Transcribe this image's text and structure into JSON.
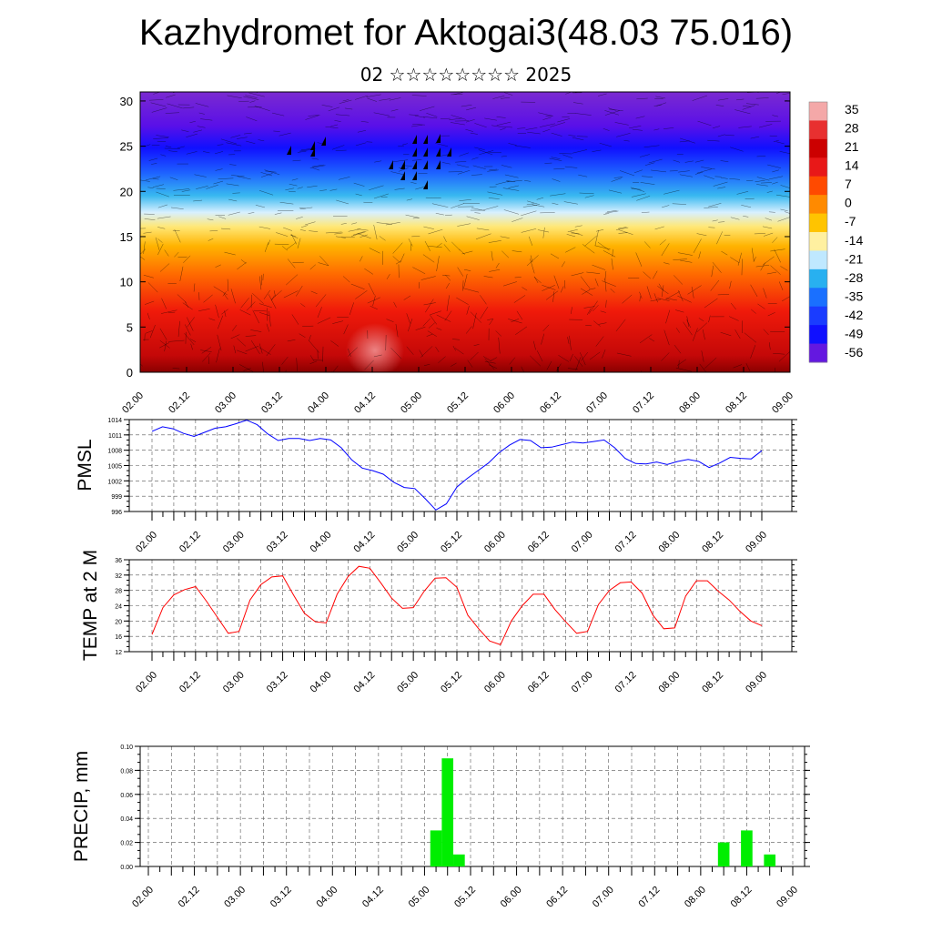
{
  "title": "Kazhydromet for Aktogai3(48.03 75.016)",
  "subtitle": "02 ☆☆☆☆☆☆☆☆ 2025",
  "colors": {
    "pmsl_line": "#0000ff",
    "temp_line": "#ff0000",
    "precip_bar": "#00ee00"
  },
  "chart_data": [
    {
      "type": "heatmap",
      "title": "",
      "xlabel": "",
      "ylabel": "",
      "x_ticks": [
        "02.00",
        "02.12",
        "03.00",
        "03.12",
        "04.00",
        "04.12",
        "05.00",
        "05.12",
        "06.00",
        "06.12",
        "07.00",
        "07.12",
        "08.00",
        "08.12",
        "09.00"
      ],
      "y_ticks": [
        "0",
        "5",
        "10",
        "15",
        "20",
        "25",
        "30"
      ],
      "ylim": [
        0,
        31
      ],
      "colorbar_labels": [
        "35",
        "28",
        "21",
        "14",
        "7",
        "0",
        "-7",
        "-14",
        "-21",
        "-28",
        "-35",
        "-42",
        "-49",
        "-56"
      ],
      "overlay": "wind streamlines and barbs"
    },
    {
      "type": "line",
      "ylabel": "PMSL",
      "ylim": [
        996,
        1014
      ],
      "y_ticks": [
        "1014",
        "1011",
        "1008",
        "1005",
        "1002",
        "999",
        "996"
      ],
      "x_ticks": [
        "02.00",
        "02.12",
        "03.00",
        "03.12",
        "04.00",
        "04.12",
        "05.00",
        "05.12",
        "06.00",
        "06.12",
        "07.00",
        "07.12",
        "08.00",
        "08.12",
        "09.00"
      ],
      "grid": true,
      "series": [
        {
          "values": [
            1011.7,
            1012.6,
            1012.2,
            1011.3,
            1010.7,
            1011.5,
            1012.3,
            1012.6,
            1013.2,
            1013.9,
            1013.0,
            1011.2,
            1009.9,
            1010.3,
            1010.3,
            1009.9,
            1010.3,
            1010.0,
            1008.5,
            1006.1,
            1004.5,
            1004.0,
            1003.3,
            1001.7,
            1000.7,
            1000.5,
            998.5,
            996.3,
            997.5,
            1000.8,
            1002.5,
            1004.0,
            1005.5,
            1007.5,
            1009.0,
            1010.1,
            1009.9,
            1008.5,
            1008.6,
            1009.1,
            1009.6,
            1009.4,
            1009.7,
            1010.0,
            1008.5,
            1006.4,
            1005.4,
            1005.3,
            1005.7,
            1005.2,
            1005.8,
            1006.2,
            1005.8,
            1004.6,
            1005.5,
            1006.6,
            1006.4,
            1006.3,
            1007.9
          ]
        }
      ]
    },
    {
      "type": "line",
      "ylabel": "TEMP at 2 M",
      "ylim": [
        12,
        36
      ],
      "y_ticks": [
        "36",
        "32",
        "28",
        "24",
        "20",
        "16",
        "12"
      ],
      "x_ticks": [
        "02.00",
        "02.12",
        "03.00",
        "03.12",
        "04.00",
        "04.12",
        "05.00",
        "05.12",
        "06.00",
        "06.12",
        "07.00",
        "07.12",
        "08.00",
        "08.12",
        "09.00"
      ],
      "grid": true,
      "series": [
        {
          "values": [
            16.5,
            23.5,
            26.8,
            28.2,
            29.0,
            25.2,
            21.0,
            16.8,
            17.3,
            25.5,
            29.5,
            31.5,
            31.8,
            26.8,
            22.0,
            19.8,
            19.5,
            27.0,
            31.6,
            34.3,
            33.8,
            30.0,
            26.0,
            23.3,
            23.5,
            27.8,
            31.2,
            31.3,
            28.8,
            21.5,
            18.0,
            14.8,
            13.8,
            20.0,
            24.0,
            27.0,
            27.0,
            23.0,
            19.8,
            16.8,
            17.3,
            24.3,
            28.0,
            30.0,
            30.2,
            27.3,
            21.5,
            18.0,
            18.2,
            26.5,
            30.5,
            30.5,
            27.8,
            25.5,
            22.5,
            20.0,
            18.8
          ]
        }
      ]
    },
    {
      "type": "bar",
      "ylabel": "PRECIP, mm",
      "ylim": [
        0,
        0.1
      ],
      "y_ticks": [
        "0.10",
        "0.08",
        "0.06",
        "0.04",
        "0.02",
        "0.00"
      ],
      "x_ticks": [
        "02.00",
        "02.12",
        "03.00",
        "03.12",
        "04.00",
        "04.12",
        "05.00",
        "05.12",
        "06.00",
        "06.12",
        "07.00",
        "07.12",
        "08.00",
        "08.12",
        "09.00"
      ],
      "grid": true,
      "bars": [
        {
          "time_hours": 75,
          "value": 0.03
        },
        {
          "time_hours": 78,
          "value": 0.09
        },
        {
          "time_hours": 81,
          "value": 0.01
        },
        {
          "time_hours": 150,
          "value": 0.02
        },
        {
          "time_hours": 156,
          "value": 0.03
        },
        {
          "time_hours": 162,
          "value": 0.01
        }
      ]
    }
  ]
}
